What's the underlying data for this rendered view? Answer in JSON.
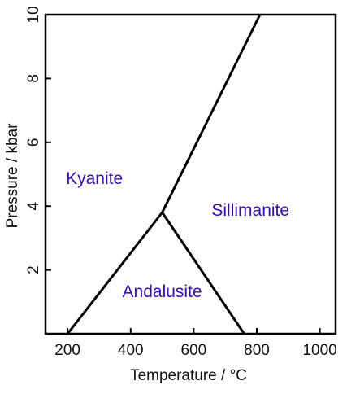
{
  "chart_data": {
    "type": "line",
    "xlabel": "Temperature / °C",
    "ylabel": "Pressure / kbar",
    "xlim": [
      130,
      1050
    ],
    "ylim": [
      0,
      10
    ],
    "xticks": [
      200,
      400,
      600,
      800,
      1000
    ],
    "yticks": [
      2,
      4,
      6,
      8,
      10
    ],
    "grid": false,
    "colors": {
      "boundary": "#000000",
      "field_label": "#3a0ea8",
      "frame": "#000000"
    },
    "triple_point": {
      "x": 500,
      "y": 3.8
    },
    "series": [
      {
        "id": "kyanite-andalusite",
        "x": [
          200,
          500
        ],
        "y": [
          0,
          3.8
        ]
      },
      {
        "id": "andalusite-sillimanite",
        "x": [
          500,
          760
        ],
        "y": [
          3.8,
          0
        ]
      },
      {
        "id": "kyanite-sillimanite",
        "x": [
          500,
          810
        ],
        "y": [
          3.8,
          10
        ]
      }
    ],
    "annotations": [
      {
        "text": "Kyanite",
        "x": 285,
        "y": 4.7
      },
      {
        "text": "Sillimanite",
        "x": 780,
        "y": 3.7
      },
      {
        "text": "Andalusite",
        "x": 500,
        "y": 1.15
      }
    ]
  }
}
